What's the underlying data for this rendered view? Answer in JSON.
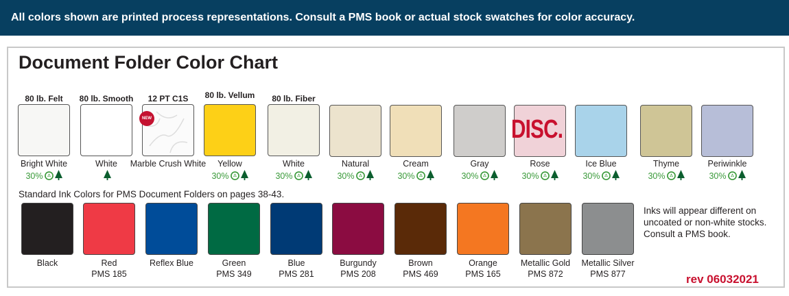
{
  "banner": "All colors shown are printed process representations. Consult a PMS book or actual stock swatches for color accuracy.",
  "title": "Document Folder Color Chart",
  "paper_colors": [
    {
      "grade": "80 lb. Felt",
      "name": "Bright White",
      "recycled": "30%",
      "color": "#f7f7f5",
      "tree": true
    },
    {
      "grade": "80 lb. Smooth",
      "name": "White",
      "recycled": "",
      "color": "#ffffff",
      "tree": true
    },
    {
      "grade": "12 PT C1S",
      "name": "Marble Crush White",
      "recycled": "",
      "color": "#fbfbfb",
      "tree": false,
      "badge": "NEW",
      "marble": true
    },
    {
      "grade": "80 lb. Vellum",
      "name": "Yellow",
      "recycled": "30%",
      "color": "#fdd017",
      "tree": true
    },
    {
      "grade": "80 lb. Fiber",
      "name": "White",
      "recycled": "30%",
      "color": "#f2f0e4",
      "tree": true
    },
    {
      "grade": "",
      "name": "Natural",
      "recycled": "30%",
      "color": "#ece3cd",
      "tree": true
    },
    {
      "grade": "",
      "name": "Cream",
      "recycled": "30%",
      "color": "#f0dfb8",
      "tree": true
    },
    {
      "grade": "",
      "name": "Gray",
      "recycled": "30%",
      "color": "#cfcdcb",
      "tree": true
    },
    {
      "grade": "",
      "name": "Rose",
      "recycled": "30%",
      "color": "#f0d2d8",
      "tree": true,
      "overlay": "DISC."
    },
    {
      "grade": "",
      "name": "Ice Blue",
      "recycled": "30%",
      "color": "#a9d3ea",
      "tree": true
    },
    {
      "grade": "",
      "name": "Thyme",
      "recycled": "30%",
      "color": "#cfc596",
      "tree": true
    },
    {
      "grade": "",
      "name": "Periwinkle",
      "recycled": "30%",
      "color": "#b7bed8",
      "tree": true
    }
  ],
  "ink_heading": "Standard Ink Colors for PMS Document Folders on pages 38-43.",
  "ink_colors": [
    {
      "name": "Black",
      "pms": "",
      "color": "#231f20"
    },
    {
      "name": "Red",
      "pms": "PMS 185",
      "color": "#ef3a45"
    },
    {
      "name": "Reflex Blue",
      "pms": "",
      "color": "#004c99"
    },
    {
      "name": "Green",
      "pms": "PMS 349",
      "color": "#006a43"
    },
    {
      "name": "Blue",
      "pms": "PMS 281",
      "color": "#003a75"
    },
    {
      "name": "Burgundy",
      "pms": "PMS 208",
      "color": "#8b0c41"
    },
    {
      "name": "Brown",
      "pms": "PMS 469",
      "color": "#5a2a08"
    },
    {
      "name": "Orange",
      "pms": "PMS 165",
      "color": "#f47721"
    },
    {
      "name": "Metallic Gold",
      "pms": "PMS 872",
      "color": "#8b744d"
    },
    {
      "name": "Metallic Silver",
      "pms": "PMS 877",
      "color": "#8c8e8f"
    }
  ],
  "ink_note": "Inks will appear different on uncoated or non-white stocks. Consult a PMS book.",
  "revision": "rev 06032021",
  "colors": {
    "banner": "#073f60",
    "recycled_green": "#3a9a3a",
    "tree_green": "#0b5e2e",
    "disc_red": "#c8102e"
  },
  "icons": {
    "recycled": "recycle-icon",
    "tree": "tree-icon"
  }
}
